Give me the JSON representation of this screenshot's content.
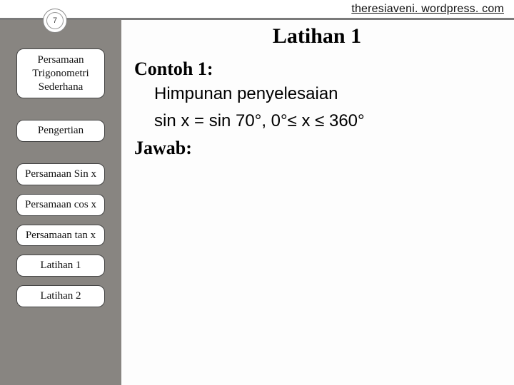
{
  "header": {
    "url": "theresiaveni. wordpress. com",
    "page_number": "7"
  },
  "sidebar": {
    "items": [
      {
        "label": "Persamaan Trigonometri Sederhana",
        "size": "tall"
      },
      {
        "label": "Pengertian",
        "size": "small",
        "gap_before": true
      },
      {
        "label": "Persamaan Sin x",
        "size": "small",
        "gap_before": true
      },
      {
        "label": "Persamaan cos x",
        "size": "small"
      },
      {
        "label": "Persamaan tan x",
        "size": "small"
      },
      {
        "label": "Latihan 1",
        "size": "small"
      },
      {
        "label": "Latihan 2",
        "size": "small"
      }
    ]
  },
  "content": {
    "title": "Latihan 1",
    "contoh_label": "Contoh 1:",
    "line1": "Himpunan penyelesaian",
    "line2": "sin x = sin 70°, 0°≤ x ≤ 360°",
    "jawab_label": "Jawab:"
  }
}
